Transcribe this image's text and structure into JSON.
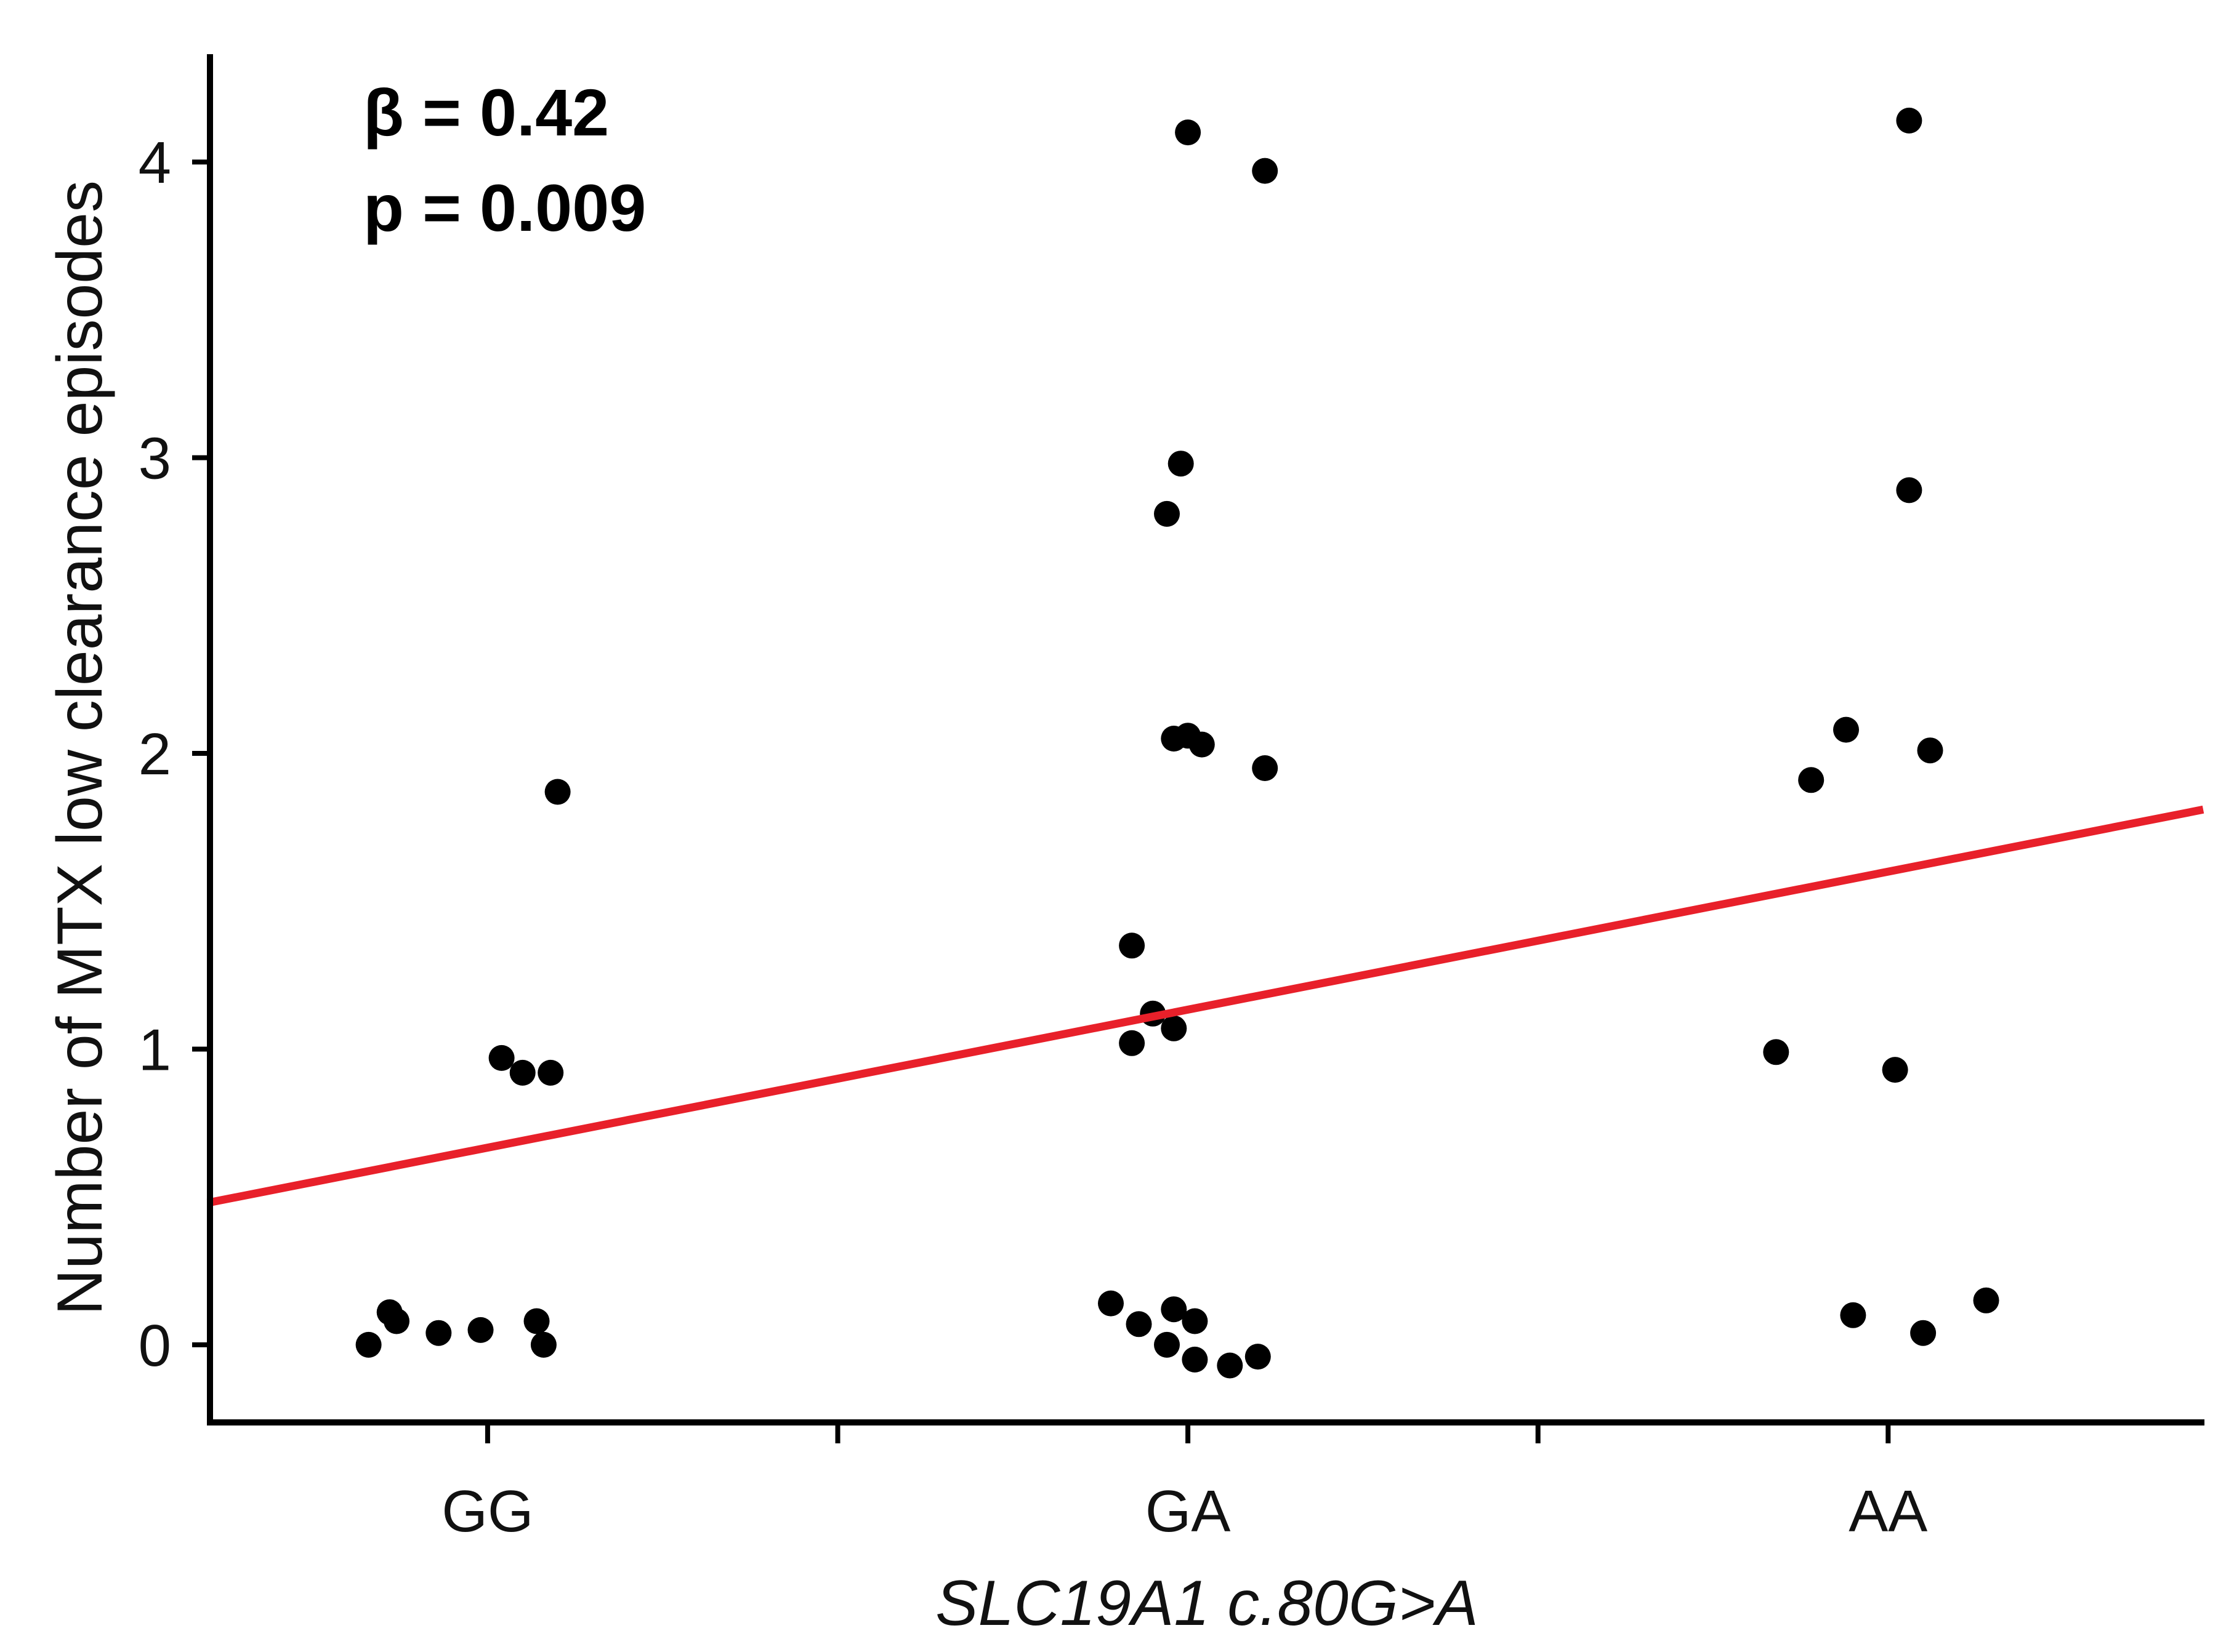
{
  "chart_data": {
    "type": "scatter",
    "title": "",
    "xlabel": "SLC19A1 c.80G>A",
    "ylabel": "Number of MTX low clearance episodes",
    "categories": [
      "GG",
      "GA",
      "AA"
    ],
    "yticks": [
      "0",
      "1",
      "2",
      "3",
      "4"
    ],
    "ytick_values": [
      0,
      1,
      2,
      3,
      4
    ],
    "ylim": [
      -0.25,
      4.35
    ],
    "xlim": [
      0.6,
      3.45
    ],
    "grid": false,
    "annotations": {
      "beta": "β = 0.42",
      "p": "p = 0.009"
    },
    "colors": {
      "points": "#000000",
      "fit_line": "#e8202a",
      "axis": "#000000"
    },
    "series": [
      {
        "name": "GG",
        "points": [
          {
            "x": 0.83,
            "y": 0.0
          },
          {
            "x": 0.86,
            "y": 0.11
          },
          {
            "x": 0.87,
            "y": 0.08
          },
          {
            "x": 0.93,
            "y": 0.04
          },
          {
            "x": 0.99,
            "y": 0.05
          },
          {
            "x": 1.02,
            "y": 0.97
          },
          {
            "x": 1.05,
            "y": 0.92
          },
          {
            "x": 1.07,
            "y": 0.08
          },
          {
            "x": 1.08,
            "y": 0.0
          },
          {
            "x": 1.09,
            "y": 0.92
          },
          {
            "x": 1.1,
            "y": 1.87
          }
        ]
      },
      {
        "name": "GA",
        "points": [
          {
            "x": 1.89,
            "y": 0.14
          },
          {
            "x": 1.92,
            "y": 1.35
          },
          {
            "x": 1.92,
            "y": 1.02
          },
          {
            "x": 1.93,
            "y": 0.07
          },
          {
            "x": 1.95,
            "y": 1.12
          },
          {
            "x": 1.97,
            "y": 0.0
          },
          {
            "x": 1.97,
            "y": 2.81
          },
          {
            "x": 1.98,
            "y": 2.05
          },
          {
            "x": 1.98,
            "y": 0.12
          },
          {
            "x": 1.98,
            "y": 1.07
          },
          {
            "x": 1.99,
            "y": 2.98
          },
          {
            "x": 2.0,
            "y": 2.06
          },
          {
            "x": 2.02,
            "y": 2.03
          },
          {
            "x": 2.0,
            "y": 4.1
          },
          {
            "x": 2.01,
            "y": -0.05
          },
          {
            "x": 2.01,
            "y": 0.08
          },
          {
            "x": 2.06,
            "y": -0.07
          },
          {
            "x": 2.1,
            "y": -0.04
          },
          {
            "x": 2.11,
            "y": 1.95
          },
          {
            "x": 2.11,
            "y": 3.97
          }
        ]
      },
      {
        "name": "AA",
        "points": [
          {
            "x": 2.84,
            "y": 0.99
          },
          {
            "x": 2.89,
            "y": 1.91
          },
          {
            "x": 2.94,
            "y": 2.08
          },
          {
            "x": 2.95,
            "y": 0.1
          },
          {
            "x": 3.01,
            "y": 0.93
          },
          {
            "x": 3.03,
            "y": 4.14
          },
          {
            "x": 3.03,
            "y": 2.89
          },
          {
            "x": 3.05,
            "y": 0.04
          },
          {
            "x": 3.06,
            "y": 2.01
          },
          {
            "x": 3.14,
            "y": 0.15
          }
        ]
      }
    ],
    "fit_line": {
      "x": [
        0.6,
        3.45
      ],
      "y": [
        0.48,
        1.81
      ]
    }
  }
}
